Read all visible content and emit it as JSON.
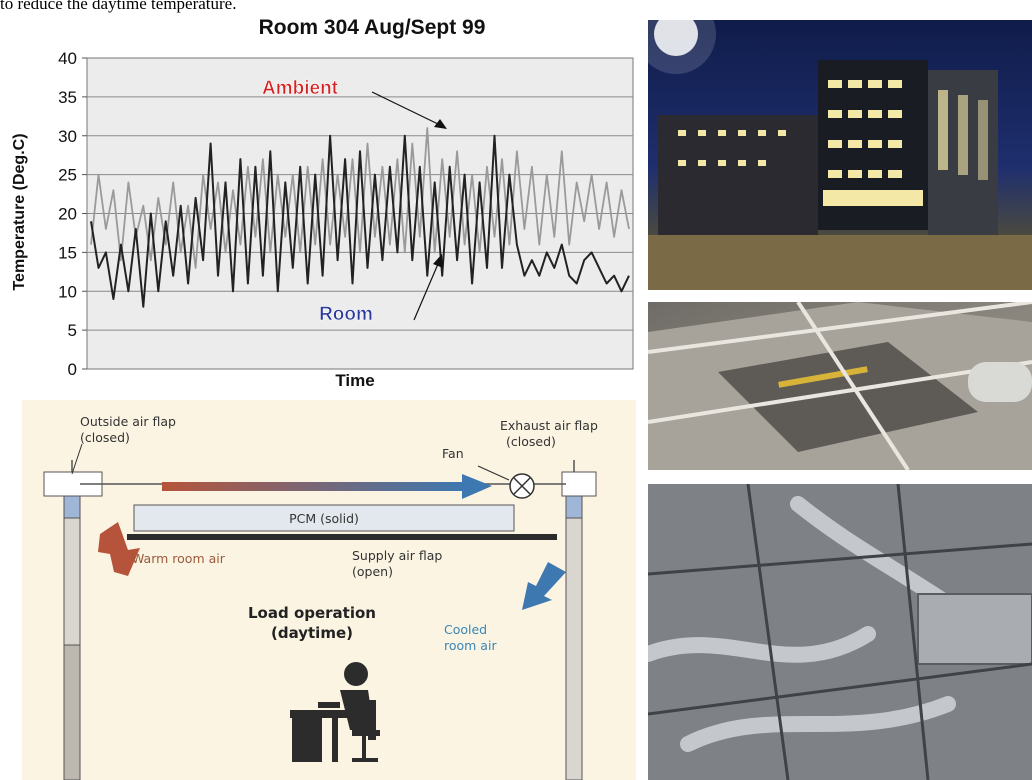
{
  "header_snippet": "to reduce the daytime temperature.",
  "chart_data": {
    "type": "line",
    "title": "Room 304 Aug/Sept 99",
    "xlabel": "Time",
    "ylabel": "Temperature (Deg.C)",
    "ylim": [
      0,
      40
    ],
    "yticks": [
      "0",
      "5",
      "10",
      "15",
      "20",
      "25",
      "30",
      "35",
      "40"
    ],
    "grid": true,
    "series": [
      {
        "name": "Ambient",
        "color": "#9a9a9a",
        "values": [
          16,
          25,
          18,
          23,
          14,
          24,
          17,
          21,
          14,
          22,
          16,
          24,
          15,
          21,
          13,
          25,
          18,
          24,
          15,
          23,
          16,
          26,
          17,
          27,
          15,
          25,
          17,
          25,
          15,
          26,
          16,
          27,
          16,
          25,
          17,
          27,
          15,
          29,
          17,
          26,
          16,
          27,
          15,
          29,
          17,
          31,
          15,
          27,
          17,
          28,
          16,
          25,
          15,
          26,
          17,
          27,
          16,
          28,
          18,
          26,
          16,
          25,
          17,
          28,
          16,
          24,
          19,
          25,
          18,
          24,
          17,
          23,
          18
        ]
      },
      {
        "name": "Room",
        "color": "#222222",
        "values": [
          19,
          13,
          15,
          9,
          16,
          10,
          18,
          8,
          20,
          10,
          19,
          12,
          21,
          11,
          22,
          14,
          29,
          12,
          24,
          10,
          27,
          11,
          26,
          12,
          28,
          10,
          24,
          13,
          26,
          11,
          25,
          12,
          30,
          14,
          27,
          11,
          28,
          13,
          25,
          14,
          26,
          15,
          30,
          14,
          26,
          12,
          24,
          12,
          26,
          14,
          25,
          11,
          24,
          13,
          30,
          13,
          25,
          16,
          12,
          14,
          12,
          15,
          13,
          16,
          12,
          11,
          14,
          15,
          13,
          11,
          12,
          10,
          12
        ]
      }
    ],
    "annotations": [
      "Ambient",
      "Room"
    ]
  },
  "diagram": {
    "outside_flap": "Outside air flap",
    "outside_flap_state": "(closed)",
    "exhaust_flap": "Exhaust air flap",
    "exhaust_flap_state": "(closed)",
    "fan": "Fan",
    "pcm": "PCM (solid)",
    "warm_air": "Warm room air",
    "supply_flap": "Supply air flap",
    "supply_flap_state": "(open)",
    "mode": "Load operation",
    "mode_time": "(daytime)",
    "cooled_air": "Cooled",
    "cooled_air_2": "room air"
  }
}
